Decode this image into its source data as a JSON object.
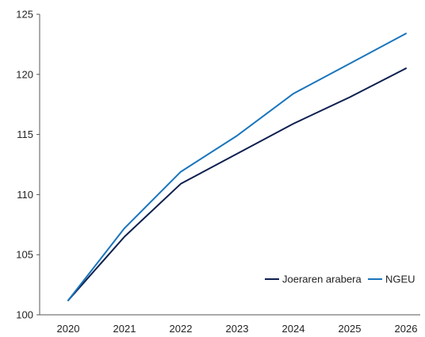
{
  "chart_data": {
    "type": "line",
    "title": "",
    "xlabel": "",
    "ylabel": "",
    "categories": [
      "2020",
      "2021",
      "2022",
      "2023",
      "2024",
      "2025",
      "2026"
    ],
    "ylim": [
      100,
      125
    ],
    "yticks": [
      100,
      105,
      110,
      115,
      120,
      125
    ],
    "grid": false,
    "legend_position": "bottom-right",
    "series": [
      {
        "name": "Joeraren arabera",
        "color": "#0d1f4f",
        "values": [
          101.2,
          106.5,
          110.9,
          113.4,
          115.9,
          118.1,
          120.5
        ]
      },
      {
        "name": "NGEU",
        "color": "#1a75bc",
        "values": [
          101.2,
          107.2,
          111.9,
          114.9,
          118.4,
          120.9,
          123.4
        ]
      }
    ]
  }
}
